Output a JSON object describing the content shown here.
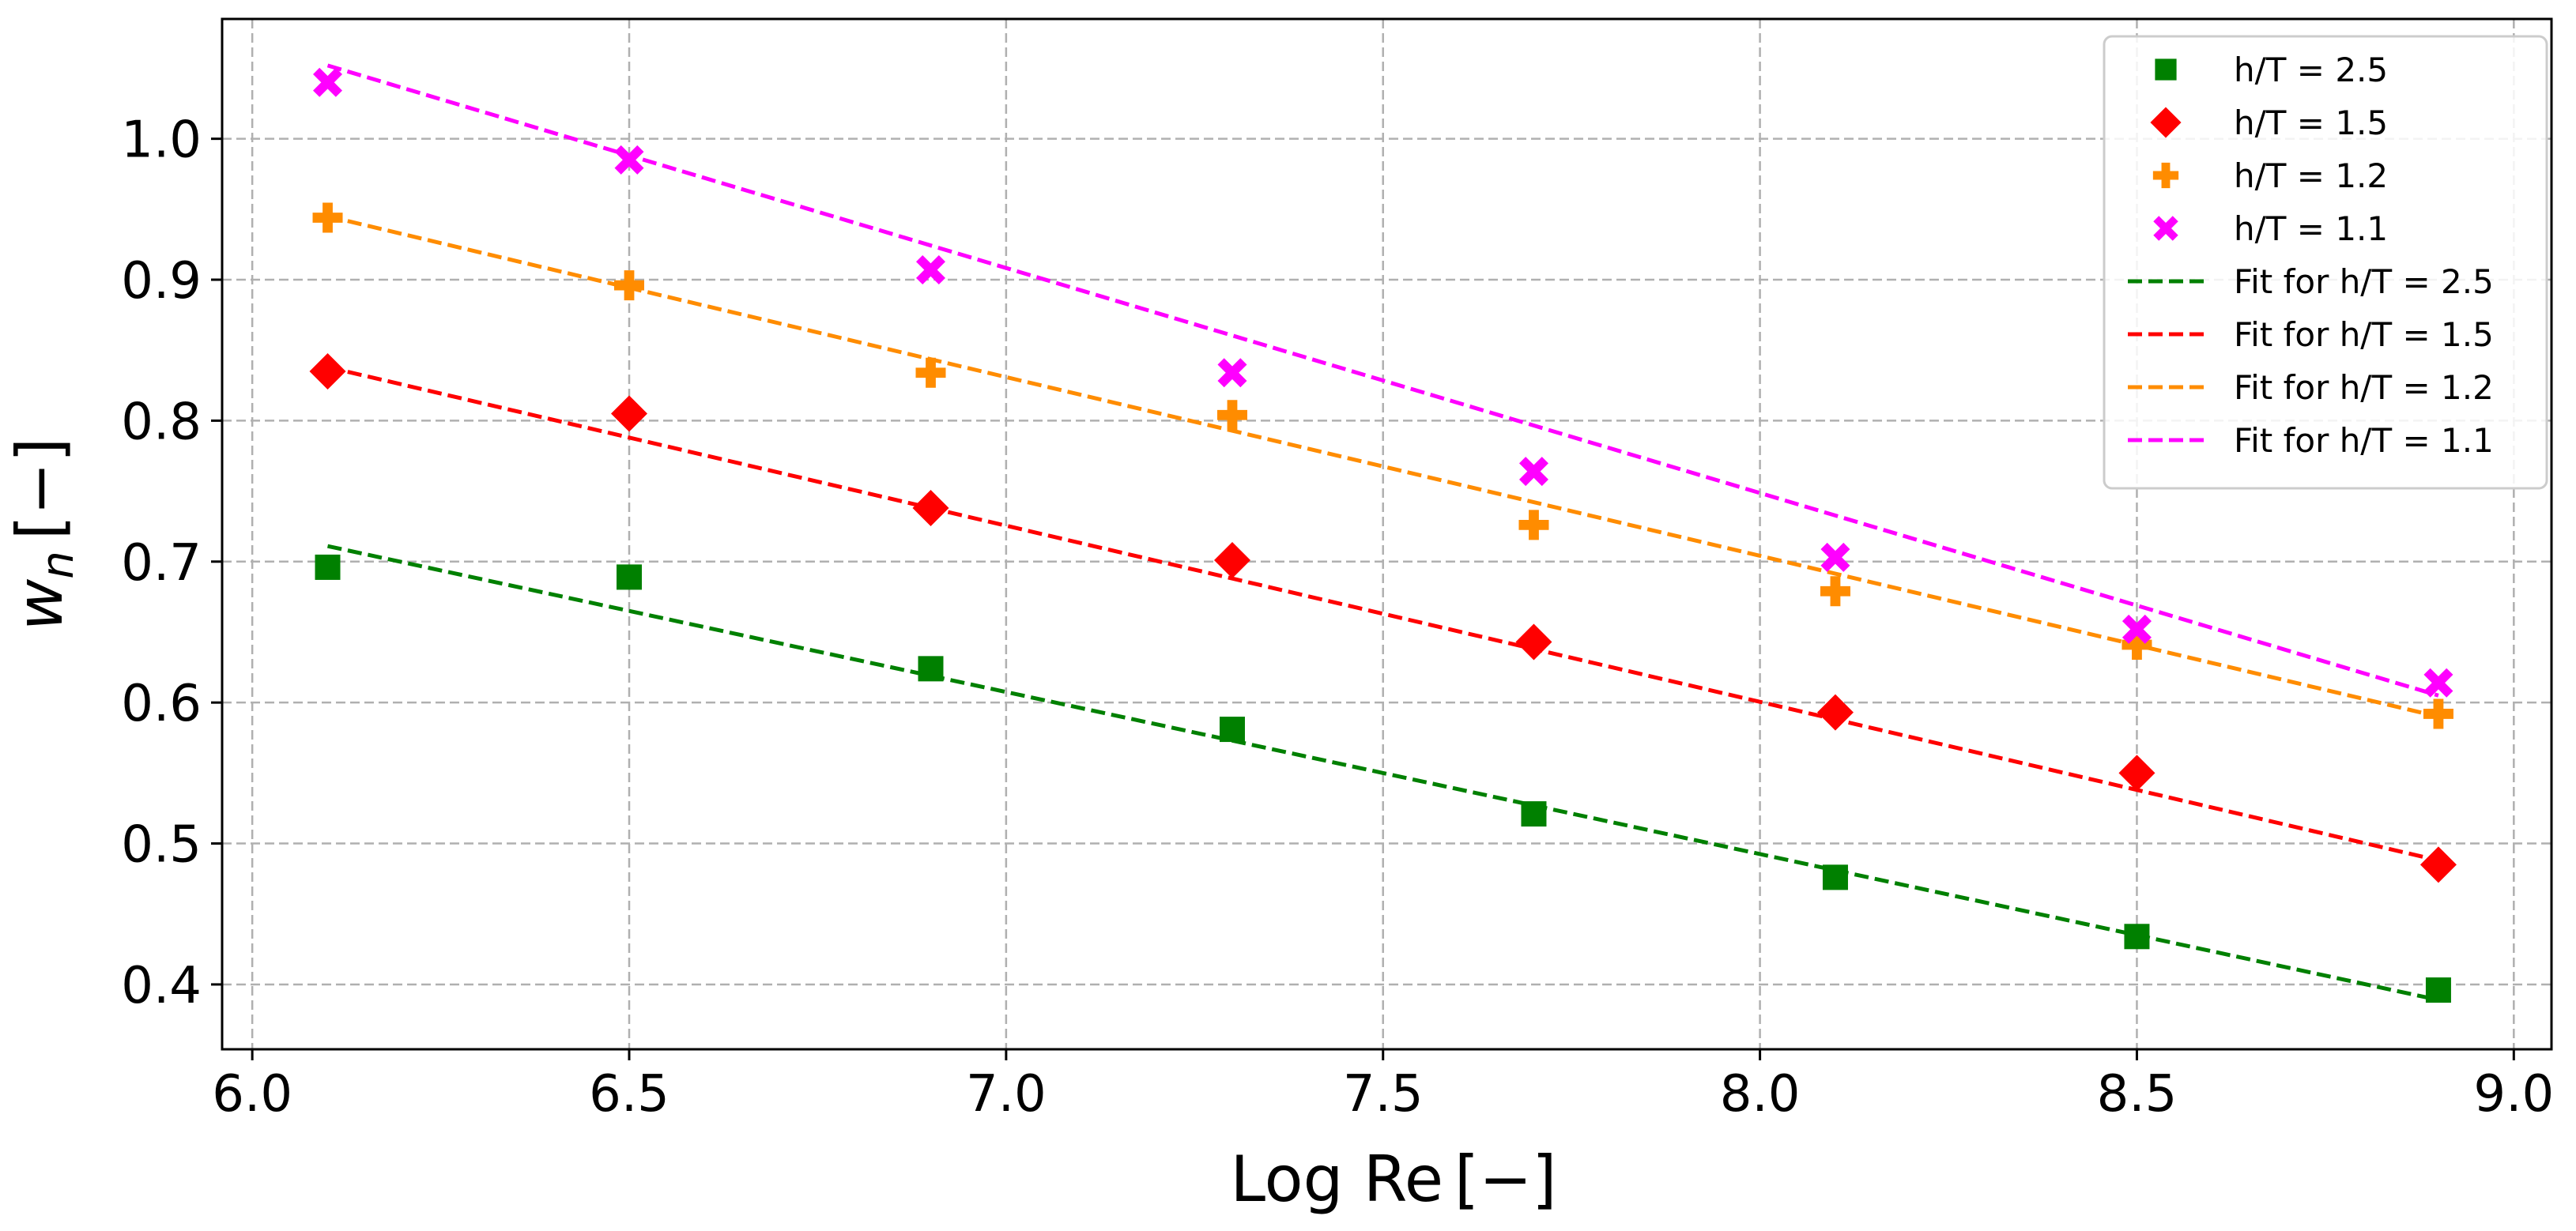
{
  "chart_data": {
    "type": "scatter",
    "title": "",
    "xlabel": "Log Re",
    "xlabel_unit": "[−]",
    "ylabel_symbol": "w",
    "ylabel_subscript": "n",
    "ylabel_unit": "[−]",
    "xlim": [
      5.96,
      9.05
    ],
    "ylim": [
      0.354,
      1.085
    ],
    "xticks": [
      "6.0",
      "6.5",
      "7.0",
      "7.5",
      "8.0",
      "8.5",
      "9.0"
    ],
    "yticks": [
      "0.4",
      "0.5",
      "0.6",
      "0.7",
      "0.8",
      "0.9",
      "1.0"
    ],
    "grid": true,
    "legend_position": "top-right",
    "x": [
      6.1,
      6.5,
      6.9,
      7.3,
      7.7,
      8.1,
      8.5,
      8.9
    ],
    "series": [
      {
        "name": "h/T = 2.5",
        "marker": "square",
        "color": "#008000",
        "values": [
          0.696,
          0.689,
          0.624,
          0.581,
          0.521,
          0.476,
          0.434,
          0.396
        ],
        "fit_name": "Fit for h/T = 2.5",
        "fit": [
          [
            6.1,
            0.711
          ],
          [
            8.9,
            0.389
          ]
        ]
      },
      {
        "name": "h/T = 1.5",
        "marker": "diamond",
        "color": "#ff0000",
        "values": [
          0.835,
          0.805,
          0.738,
          0.701,
          0.643,
          0.593,
          0.55,
          0.485
        ],
        "fit_name": "Fit for h/T = 1.5",
        "fit": [
          [
            6.1,
            0.838
          ],
          [
            8.9,
            0.488
          ]
        ]
      },
      {
        "name": "h/T = 1.2",
        "marker": "plus",
        "color": "#ff8c00",
        "values": [
          0.944,
          0.896,
          0.834,
          0.804,
          0.726,
          0.679,
          0.641,
          0.592
        ],
        "fit_name": "Fit for h/T = 1.2",
        "fit": [
          [
            6.1,
            0.945
          ],
          [
            8.9,
            0.59
          ]
        ]
      },
      {
        "name": "h/T = 1.1",
        "marker": "x",
        "color": "#ff00ff",
        "values": [
          1.04,
          0.985,
          0.907,
          0.834,
          0.764,
          0.703,
          0.652,
          0.614
        ],
        "fit_name": "Fit for h/T = 1.1",
        "fit": [
          [
            6.1,
            1.052
          ],
          [
            8.9,
            0.605
          ]
        ]
      }
    ]
  }
}
